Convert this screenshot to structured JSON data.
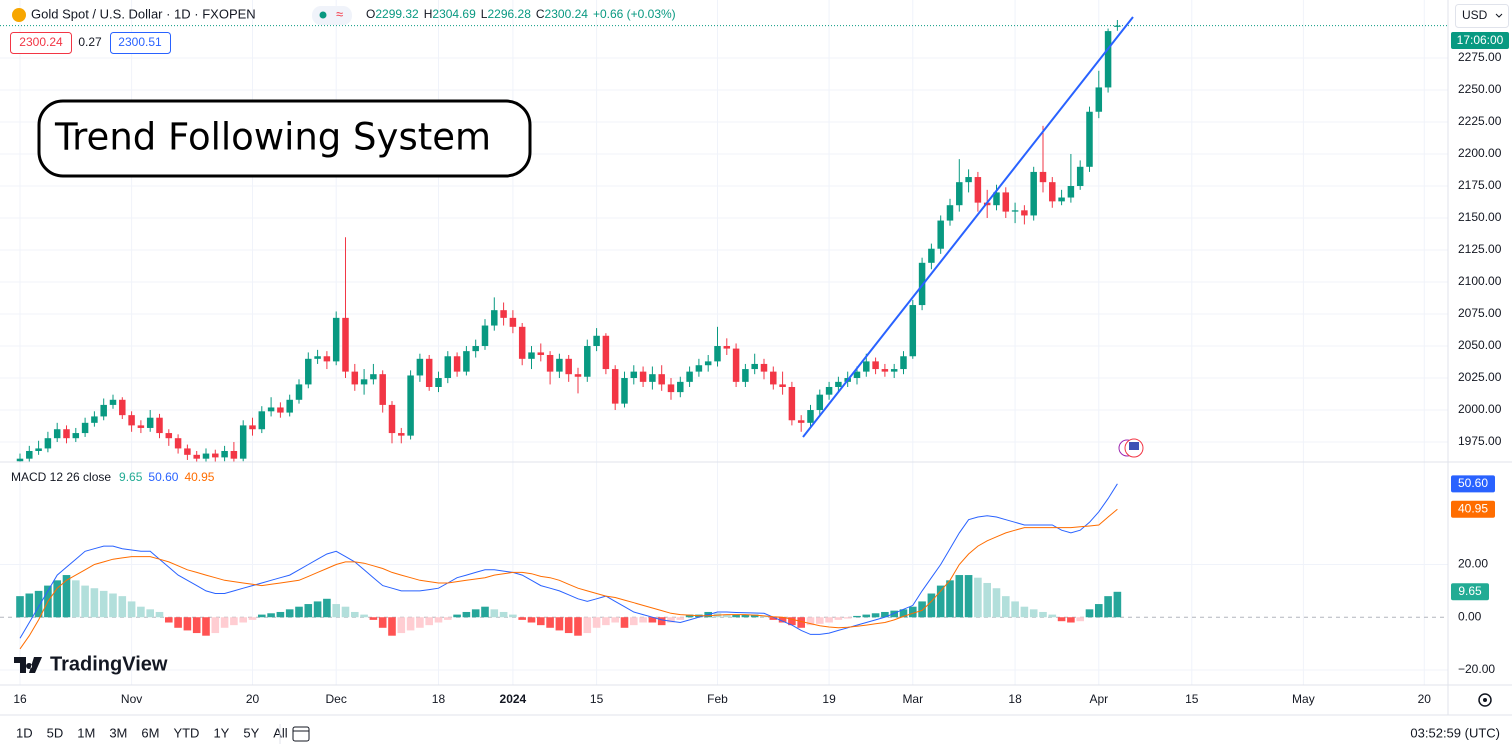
{
  "header": {
    "symbol": "Gold Spot / U.S. Dollar · 1D · FXOPEN",
    "ohlc_labels": [
      "O",
      "H",
      "L",
      "C"
    ],
    "change": "+0.66 (+0.03%)"
  },
  "quote": {
    "spread": 0.27,
    "ask": 2300.51
  },
  "currency": "USD",
  "countdown": "17:06:00",
  "annotation": "Trend Following System",
  "logo": "TradingView",
  "toolbar": {
    "ranges": [
      "1D",
      "5D",
      "1M",
      "3M",
      "6M",
      "YTD",
      "1Y",
      "5Y",
      "All"
    ],
    "clock": "03:52:59 (UTC)"
  },
  "chart_data": [
    {
      "type": "candlestick",
      "up_color": "#089981",
      "down_color": "#f23645",
      "grid": true,
      "xlim": [
        -2.15,
        153.55
      ],
      "ylim": [
        1959.4,
        2320.3
      ],
      "yticks": [
        {
          "value": 1975,
          "label": "1975.00"
        },
        {
          "value": 2000,
          "label": "2000.00"
        },
        {
          "value": 2025,
          "label": "2025.00"
        },
        {
          "value": 2050,
          "label": "2050.00"
        },
        {
          "value": 2075,
          "label": "2075.00"
        },
        {
          "value": 2100,
          "label": "2100.00"
        },
        {
          "value": 2125,
          "label": "2125.00"
        },
        {
          "value": 2150,
          "label": "2150.00"
        },
        {
          "value": 2175,
          "label": "2175.00"
        },
        {
          "value": 2200,
          "label": "2200.00"
        },
        {
          "value": 2225,
          "label": "2225.00"
        },
        {
          "value": 2250,
          "label": "2250.00"
        },
        {
          "value": 2275,
          "label": "2275.00"
        }
      ],
      "open": [
        1960,
        1962,
        1968,
        1970,
        1978,
        1985,
        1978,
        1982,
        1990,
        1995,
        2004,
        2008,
        1996,
        1988,
        1986,
        1994,
        1982,
        1978,
        1970,
        1965,
        1962,
        1966,
        1963,
        1968,
        1962,
        1988,
        1985,
        1999,
        2002,
        1998,
        2008,
        2020,
        2040,
        2042,
        2038,
        2072,
        2030,
        2020,
        2024,
        2028,
        2004,
        1982,
        1980,
        2027,
        2040,
        2018,
        2025,
        2042,
        2030,
        2046,
        2050,
        2066,
        2078,
        2072,
        2065,
        2040,
        2045,
        2043,
        2030,
        2040,
        2028,
        2026,
        2050,
        2058,
        2032,
        2005,
        2025,
        2030,
        2022,
        2028,
        2020,
        2014,
        2022,
        2030,
        2035,
        2038,
        2050,
        2048,
        2022,
        2032,
        2036,
        2030,
        2020,
        2018,
        1992,
        1990,
        2000,
        2012,
        2018,
        2022,
        2025,
        2030,
        2038,
        2032,
        2030,
        2032,
        2042,
        2082,
        2115,
        2126,
        2148,
        2160,
        2178,
        2182,
        2162,
        2160,
        2170,
        2155,
        2156,
        2152,
        2186,
        2178,
        2163,
        2166,
        2175,
        2190,
        2233,
        2252,
        2299.32
      ],
      "high": [
        1966,
        1972,
        1976,
        1983,
        1990,
        1988,
        1986,
        1994,
        1999,
        2009,
        2012,
        2010,
        1999,
        1992,
        2000,
        1997,
        1985,
        1981,
        1973,
        1968,
        1970,
        1969,
        1972,
        1975,
        1992,
        1994,
        2003,
        2010,
        2006,
        2012,
        2024,
        2045,
        2047,
        2046,
        2077,
        2135,
        2036,
        2032,
        2036,
        2031,
        2007,
        1986,
        2031,
        2044,
        2043,
        2030,
        2046,
        2045,
        2050,
        2055,
        2071,
        2088,
        2084,
        2078,
        2068,
        2050,
        2052,
        2046,
        2044,
        2043,
        2033,
        2055,
        2064,
        2060,
        2035,
        2030,
        2035,
        2034,
        2034,
        2035,
        2025,
        2026,
        2034,
        2040,
        2043,
        2065,
        2056,
        2052,
        2036,
        2044,
        2040,
        2034,
        2030,
        2022,
        1996,
        2004,
        2016,
        2022,
        2026,
        2030,
        2034,
        2044,
        2041,
        2036,
        2036,
        2046,
        2086,
        2119,
        2130,
        2152,
        2165,
        2196,
        2188,
        2186,
        2172,
        2176,
        2174,
        2162,
        2160,
        2190,
        2222,
        2182,
        2172,
        2200,
        2195,
        2237,
        2265,
        2298,
        2304.69
      ],
      "low": [
        1956,
        1959,
        1965,
        1967,
        1975,
        1974,
        1975,
        1979,
        1987,
        1992,
        2001,
        1993,
        1983,
        1982,
        1983,
        1978,
        1972,
        1966,
        1961,
        1958,
        1958,
        1959,
        1960,
        1958,
        1960,
        1980,
        1982,
        1995,
        1994,
        1995,
        2005,
        2017,
        2036,
        2032,
        2035,
        2025,
        2015,
        2012,
        2020,
        1998,
        1974,
        1974,
        1977,
        2022,
        2015,
        2014,
        2021,
        2026,
        2027,
        2041,
        2047,
        2062,
        2066,
        2060,
        2035,
        2032,
        2038,
        2020,
        2025,
        2022,
        2013,
        2022,
        2046,
        2028,
        2000,
        2002,
        2020,
        2018,
        2016,
        2015,
        2008,
        2010,
        2018,
        2026,
        2030,
        2034,
        2043,
        2018,
        2018,
        2028,
        2024,
        2016,
        2012,
        1988,
        1983,
        1986,
        1996,
        2008,
        2014,
        2018,
        2020,
        2026,
        2028,
        2026,
        2025,
        2028,
        2040,
        2078,
        2110,
        2122,
        2144,
        2155,
        2170,
        2155,
        2150,
        2156,
        2150,
        2146,
        2145,
        2148,
        2170,
        2158,
        2160,
        2162,
        2172,
        2186,
        2228,
        2248,
        2296.28
      ],
      "close": [
        1962,
        1968,
        1970,
        1978,
        1985,
        1978,
        1982,
        1990,
        1995,
        2004,
        2008,
        1996,
        1988,
        1986,
        1994,
        1982,
        1978,
        1970,
        1965,
        1962,
        1966,
        1963,
        1968,
        1962,
        1988,
        1985,
        1999,
        2002,
        1998,
        2008,
        2020,
        2040,
        2042,
        2038,
        2072,
        2030,
        2020,
        2024,
        2028,
        2004,
        1982,
        1980,
        2027,
        2040,
        2018,
        2025,
        2042,
        2030,
        2046,
        2050,
        2066,
        2078,
        2072,
        2065,
        2040,
        2045,
        2043,
        2030,
        2040,
        2028,
        2026,
        2050,
        2058,
        2032,
        2005,
        2025,
        2030,
        2022,
        2028,
        2020,
        2014,
        2022,
        2030,
        2035,
        2038,
        2050,
        2048,
        2022,
        2032,
        2036,
        2030,
        2020,
        2018,
        1992,
        1990,
        2000,
        2012,
        2018,
        2022,
        2025,
        2030,
        2038,
        2032,
        2030,
        2032,
        2042,
        2082,
        2115,
        2126,
        2148,
        2160,
        2178,
        2182,
        2162,
        2160,
        2170,
        2155,
        2156,
        2152,
        2186,
        2178,
        2163,
        2166,
        2175,
        2190,
        2233,
        2252,
        2296,
        2300.24
      ]
    },
    {
      "type": "macd",
      "title": "MACD 12 26 close",
      "grid": true,
      "ylim": [
        -25.7,
        58.5
      ],
      "yticks": [
        {
          "value": 20,
          "label": "20.00"
        },
        {
          "value": 0,
          "label": "0.00"
        },
        {
          "value": -20,
          "label": "−20.00"
        }
      ],
      "xticks": [
        {
          "value": 0,
          "label": "16"
        },
        {
          "value": 12,
          "label": "Nov"
        },
        {
          "value": 25,
          "label": "20"
        },
        {
          "value": 34,
          "label": "Dec"
        },
        {
          "value": 45,
          "label": "18"
        },
        {
          "value": 53,
          "label": "2024"
        },
        {
          "value": 62,
          "label": "15"
        },
        {
          "value": 75,
          "label": "Feb"
        },
        {
          "value": 87,
          "label": "19"
        },
        {
          "value": 96,
          "label": "Mar"
        },
        {
          "value": 107,
          "label": "18"
        },
        {
          "value": 116,
          "label": "Apr"
        },
        {
          "value": 126,
          "label": "15"
        },
        {
          "value": 138,
          "label": "May"
        },
        {
          "value": 151,
          "label": "20"
        }
      ],
      "series": [
        {
          "color": "#2962ff",
          "last_label": "50.60",
          "values": [
            -8,
            -2,
            4,
            10,
            16,
            19,
            22,
            25,
            26,
            27,
            27,
            26,
            25.5,
            25,
            25,
            22,
            19,
            16,
            14,
            12,
            10,
            9,
            9,
            10,
            11,
            12,
            13,
            14,
            15,
            16,
            18,
            20,
            22,
            24,
            25,
            23,
            21,
            18,
            15,
            12,
            11,
            10,
            10,
            10,
            10.5,
            11,
            13,
            15,
            16,
            17,
            18,
            18,
            17.5,
            17,
            16,
            14,
            12,
            11,
            10,
            8.5,
            7,
            6,
            7,
            8,
            6,
            4,
            2,
            1,
            0,
            -1,
            -1.5,
            -2,
            -1,
            0,
            1,
            2,
            2,
            1.8,
            1.7,
            1.6,
            1.5,
            0,
            -1.5,
            -3,
            -5,
            -6.5,
            -6.5,
            -6,
            -5,
            -4,
            -3,
            -2,
            -1,
            0,
            1.5,
            3,
            4.5,
            10,
            15,
            20,
            26,
            32,
            37,
            38,
            38.5,
            38,
            37,
            36,
            35,
            35,
            35,
            35,
            33,
            32,
            33,
            36,
            40,
            45,
            50.6
          ]
        },
        {
          "color": "#ff6d00",
          "last_label": "40.95",
          "values": [
            -12,
            -7,
            -1,
            6,
            11,
            14,
            16,
            18,
            20,
            21,
            22,
            22.5,
            23,
            23,
            23,
            22,
            21,
            19.5,
            18,
            17,
            16,
            15,
            14,
            13.5,
            13,
            12.5,
            12,
            12.5,
            13,
            13.5,
            14,
            15.5,
            17,
            18.5,
            20,
            21,
            21,
            20.5,
            19.5,
            18.5,
            17,
            16,
            15,
            14,
            13.5,
            13,
            13,
            13.5,
            14,
            14.5,
            15,
            16,
            16.5,
            17,
            17,
            16.5,
            15.5,
            15,
            14,
            12.5,
            11,
            10,
            9,
            8,
            7.5,
            6.5,
            5.5,
            4.5,
            3.5,
            2.5,
            1.5,
            1,
            0.8,
            0.6,
            0.6,
            0.8,
            1,
            1,
            1,
            0.8,
            0.5,
            0.2,
            0,
            -0.8,
            -1.6,
            -2.4,
            -3.2,
            -3.7,
            -4,
            -3.8,
            -3.4,
            -3,
            -2.5,
            -2,
            -1,
            0.3,
            1.5,
            2.6,
            6,
            10,
            14,
            20,
            24,
            27,
            29,
            30.5,
            32,
            33,
            34,
            34,
            34,
            34,
            34,
            34,
            34.3,
            34.6,
            35,
            38,
            40.95
          ]
        },
        {
          "type": "histogram",
          "colors": [
            "#26a69a",
            "#b2dfdb",
            "#ffcdd2",
            "#ff5252"
          ],
          "values": [
            8,
            9,
            10,
            12,
            14,
            16,
            14,
            12,
            11,
            10,
            9,
            8,
            6,
            4,
            3,
            2,
            -2,
            -4,
            -5,
            -6,
            -7,
            -6,
            -4,
            -3,
            -2,
            -1,
            1,
            1.5,
            2,
            3,
            4,
            5,
            6,
            7,
            5,
            4,
            2,
            1,
            -1,
            -4,
            -7,
            -6,
            -5,
            -4,
            -3,
            -2,
            -1,
            1,
            2,
            3,
            4,
            3,
            2,
            1,
            -1,
            -2,
            -3,
            -4,
            -5,
            -6,
            -7,
            -6,
            -4,
            -3,
            -2,
            -4,
            -3,
            -2,
            -2,
            -3,
            -2,
            -1,
            1,
            1,
            2,
            1.5,
            1,
            1,
            1,
            1,
            0.5,
            -1,
            -2,
            -3,
            -4,
            -3,
            -2.5,
            -2,
            -1,
            -0.5,
            0.5,
            1,
            1.5,
            2,
            2.5,
            3,
            4,
            6,
            9,
            12,
            14,
            16,
            16,
            15,
            13,
            11,
            8,
            6,
            4,
            3,
            2,
            1,
            -1.5,
            -2,
            -1.5,
            3,
            5,
            8,
            9.65
          ]
        }
      ]
    }
  ]
}
